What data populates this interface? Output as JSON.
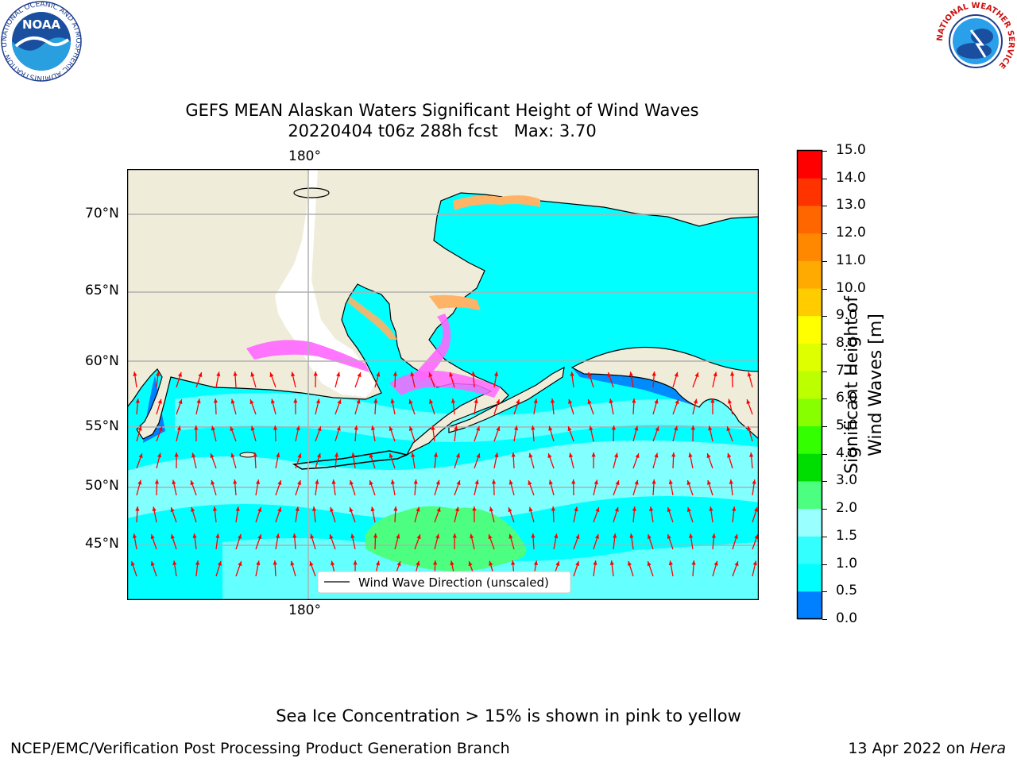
{
  "title": {
    "line1": "GEFS MEAN Alaskan Waters Significant Height of Wind Waves",
    "line2_run": "20220404 t06z 288h fcst",
    "line2_max": "Max: 3.70"
  },
  "map": {
    "lon_label_top": "180°",
    "lon_label_bottom": "180°",
    "lat_labels": [
      "70°N",
      "65°N",
      "60°N",
      "55°N",
      "50°N",
      "45°N"
    ],
    "legend_label": "Wind Wave Direction (unscaled)",
    "colors": {
      "land": "#efedda",
      "ocean_main": "#00ffff",
      "ocean_light": "#99ffff",
      "patch": "#4dff80",
      "ice_pink": "#ff66ff",
      "ice_orange": "#ffb366",
      "arrow": "#ff0000"
    }
  },
  "colorbar": {
    "label": "Significant Height of Wind Waves [m]",
    "ticks": [
      "15.0",
      "14.0",
      "13.0",
      "12.0",
      "11.0",
      "10.0",
      "9.0",
      "8.0",
      "7.0",
      "6.0",
      "5.0",
      "4.0",
      "3.0",
      "2.0",
      "1.5",
      "1.0",
      "0.5",
      "0.0"
    ],
    "colors_top_to_bottom": [
      "#ff0000",
      "#ff3300",
      "#ff6600",
      "#ff8800",
      "#ffaa00",
      "#ffcc00",
      "#ffff00",
      "#ddff00",
      "#bbff00",
      "#88ff00",
      "#33ff00",
      "#00dd00",
      "#4dff80",
      "#99ffff",
      "#33ffff",
      "#00ffff",
      "#0080ff",
      "#0000ff"
    ]
  },
  "logos": {
    "noaa_text": "NOAA",
    "noaa_ring": "NATIONAL OCEANIC AND ATMOSPHERIC ADMINISTRATION · U.S. DEPARTMENT OF COMMERCE",
    "nws_ring": "NATIONAL WEATHER SERVICE"
  },
  "footer": {
    "ice_note": "Sea Ice Concentration > 15% is shown in pink to yellow",
    "org": "NCEP/EMC/Verification Post Processing Product Generation Branch",
    "date": "13 Apr 2022 on",
    "host": "Hera"
  }
}
